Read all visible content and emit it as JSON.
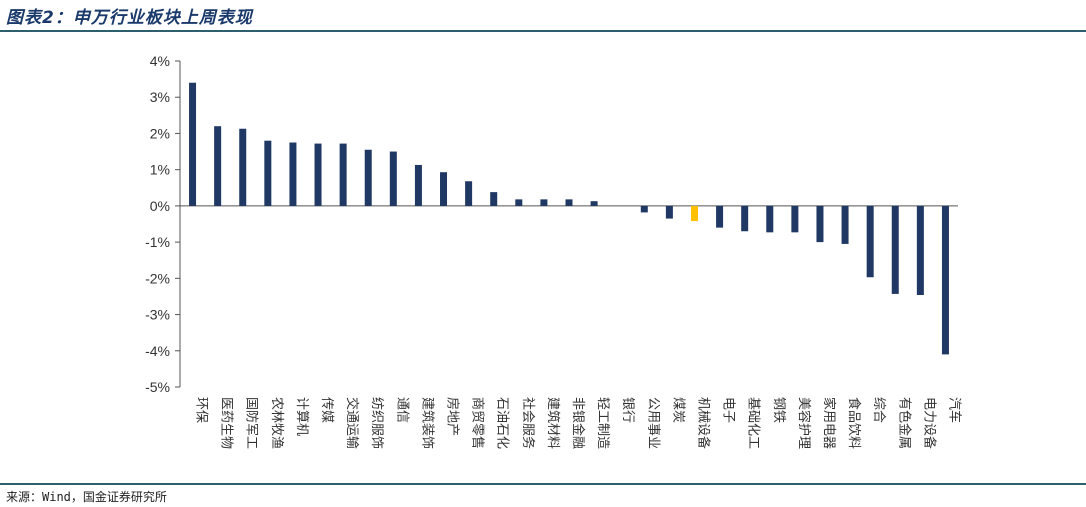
{
  "header": {
    "title": "图表2：申万行业板块上周表现"
  },
  "footer": {
    "source": "来源：Wind，国金证券研究所"
  },
  "colors": {
    "bar_default": "#1f3864",
    "bar_highlight": "#ffc000",
    "rule": "#2e5f6e"
  },
  "chart_data": {
    "type": "bar",
    "title": "",
    "xlabel": "",
    "ylabel": "",
    "ylim": [
      -5,
      4
    ],
    "yticks": [
      "4%",
      "3%",
      "2%",
      "1%",
      "0%",
      "-1%",
      "-2%",
      "-3%",
      "-4%",
      "-5%"
    ],
    "ytick_values": [
      4,
      3,
      2,
      1,
      0,
      -1,
      -2,
      -3,
      -4,
      -5
    ],
    "unit": "%",
    "grid": false,
    "highlight_category": "机械设备",
    "categories": [
      "环保",
      "医药生物",
      "国防军工",
      "农林牧渔",
      "计算机",
      "传媒",
      "交通运输",
      "纺织服饰",
      "通信",
      "建筑装饰",
      "房地产",
      "商贸零售",
      "石油石化",
      "社会服务",
      "建筑材料",
      "非银金融",
      "轻工制造",
      "银行",
      "公用事业",
      "煤炭",
      "机械设备",
      "电子",
      "基础化工",
      "钢铁",
      "美容护理",
      "家用电器",
      "食品饮料",
      "综合",
      "有色金属",
      "电力设备",
      "汽车"
    ],
    "values": [
      3.4,
      2.2,
      2.13,
      1.8,
      1.75,
      1.72,
      1.72,
      1.55,
      1.5,
      1.13,
      0.93,
      0.68,
      0.38,
      0.18,
      0.18,
      0.18,
      0.13,
      0.0,
      -0.18,
      -0.35,
      -0.42,
      -0.6,
      -0.7,
      -0.73,
      -0.73,
      -1.0,
      -1.05,
      -1.97,
      -2.43,
      -2.46,
      -4.1
    ]
  }
}
